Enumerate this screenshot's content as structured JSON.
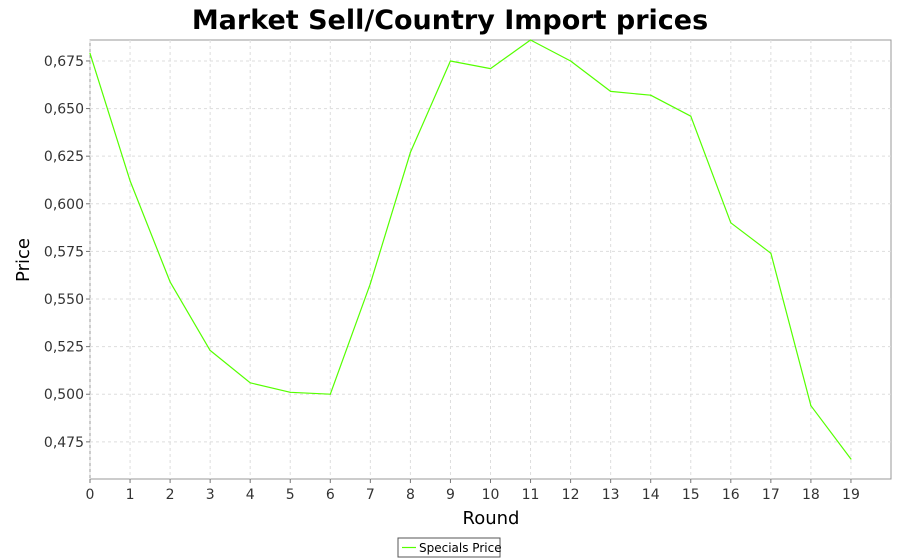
{
  "chart_data": {
    "type": "line",
    "title": "Market Sell/Country Import prices",
    "xlabel": "Round",
    "ylabel": "Price",
    "xlim": [
      0,
      20
    ],
    "ylim": [
      0.4555,
      0.686
    ],
    "x_ticks": [
      "0",
      "1",
      "2",
      "3",
      "4",
      "5",
      "6",
      "7",
      "8",
      "9",
      "10",
      "11",
      "12",
      "13",
      "14",
      "15",
      "16",
      "17",
      "18",
      "19"
    ],
    "y_ticks": [
      "0,475",
      "0,500",
      "0,525",
      "0,550",
      "0,575",
      "0,600",
      "0,625",
      "0,650",
      "0,675"
    ],
    "grid": true,
    "legend_position": "bottom",
    "series": [
      {
        "name": "Specials Price",
        "color": "#55ff00",
        "x": [
          0,
          1,
          2,
          3,
          4,
          5,
          6,
          7,
          8,
          9,
          10,
          11,
          12,
          13,
          14,
          15,
          16,
          17,
          18,
          19
        ],
        "values": [
          0.679,
          0.612,
          0.559,
          0.523,
          0.506,
          0.501,
          0.5,
          0.558,
          0.627,
          0.675,
          0.671,
          0.686,
          0.675,
          0.659,
          0.657,
          0.646,
          0.59,
          0.574,
          0.494,
          0.466
        ]
      }
    ]
  }
}
